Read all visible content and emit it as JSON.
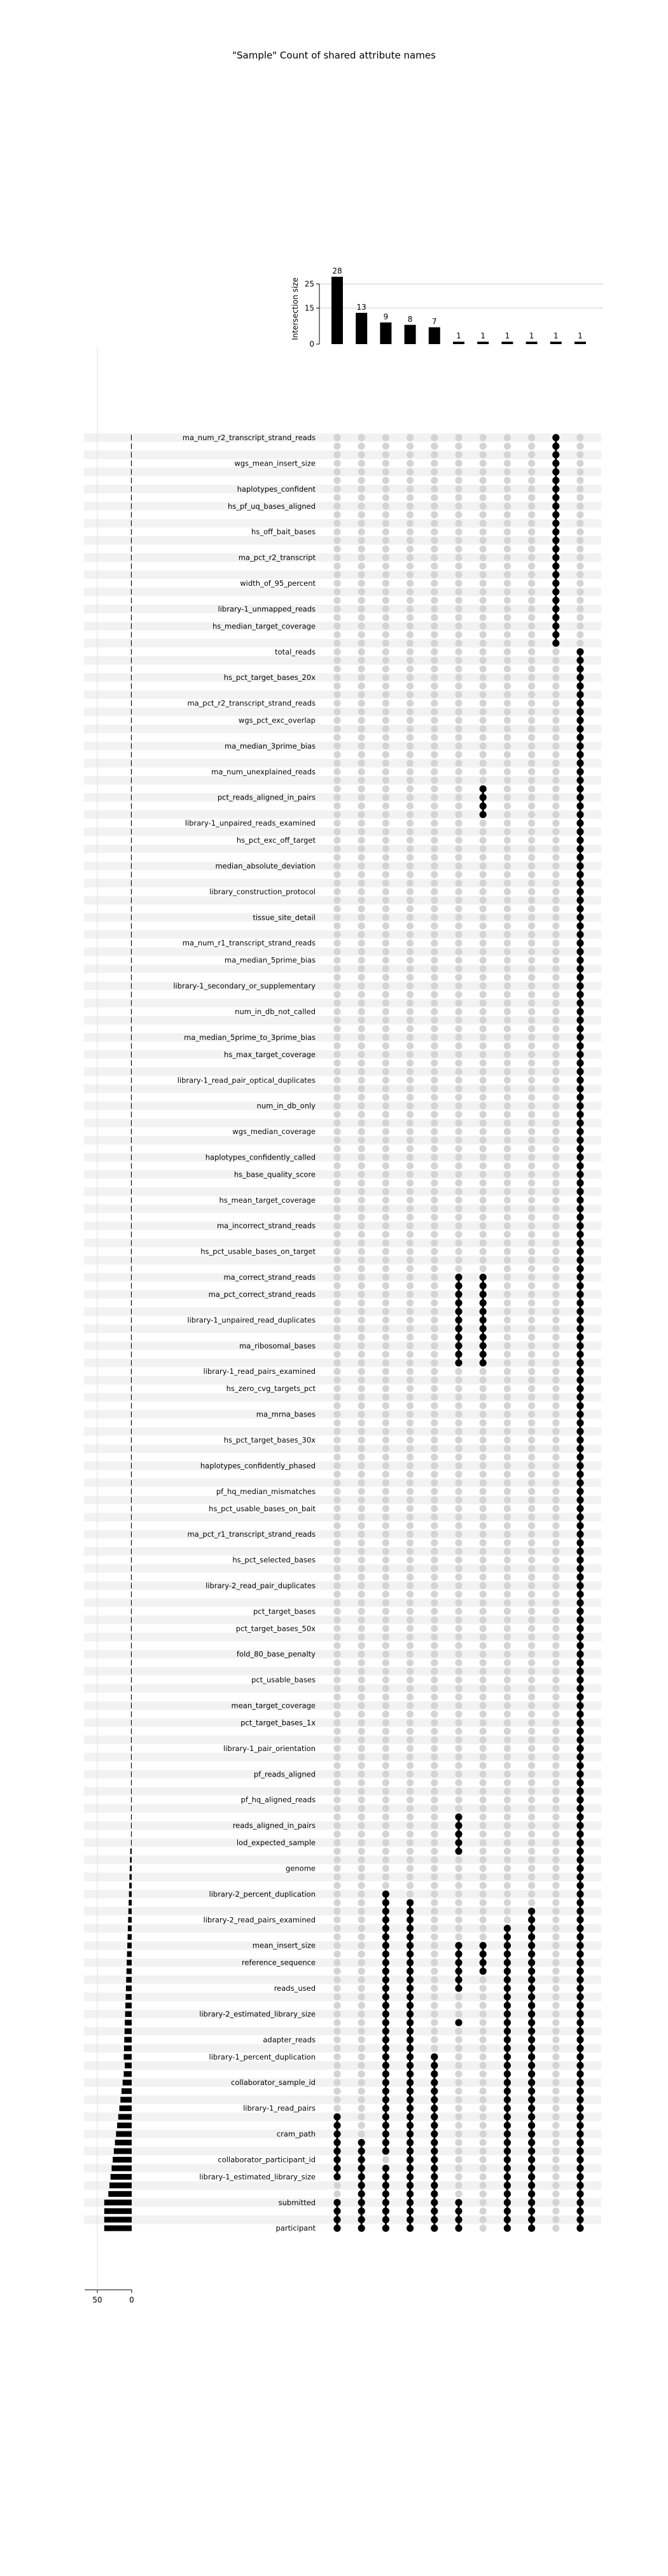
{
  "chart_data": {
    "type": "bar",
    "title": "\"Sample\" Count of shared attribute names",
    "intersection_axis_label": "Intersection size",
    "intersection_ticks": [
      0,
      15,
      25
    ],
    "intersection_sizes": [
      28,
      13,
      9,
      8,
      7,
      1,
      1,
      1,
      1,
      1,
      1
    ],
    "set_size_ticks": [
      50,
      0
    ],
    "set_size_max": 60,
    "grid": true,
    "visible_row_labels": [
      "ma_num_r2_transcript_strand_reads",
      "wgs_mean_insert_size",
      "haplotypes_confident",
      "hs_pf_uq_bases_aligned",
      "hs_off_bait_bases",
      "ma_pct_r2_transcript",
      "width_of_95_percent",
      "library-1_unmapped_reads",
      "hs_median_target_coverage",
      "total_reads",
      "hs_pct_target_bases_20x",
      "ma_pct_r2_transcript_strand_reads",
      "wgs_pct_exc_overlap",
      "ma_median_3prime_bias",
      "ma_num_unexplained_reads",
      "pct_reads_aligned_in_pairs",
      "library-1_unpaired_reads_examined",
      "hs_pct_exc_off_target",
      "median_absolute_deviation",
      "library_construction_protocol",
      "tissue_site_detail",
      "ma_num_r1_transcript_strand_reads",
      "ma_median_5prime_bias",
      "library-1_secondary_or_supplementary",
      "num_in_db_not_called",
      "ma_median_5prime_to_3prime_bias",
      "hs_max_target_coverage",
      "library-1_read_pair_optical_duplicates",
      "num_in_db_only",
      "wgs_median_coverage",
      "haplotypes_confidently_called",
      "hs_base_quality_score",
      "hs_mean_target_coverage",
      "ma_incorrect_strand_reads",
      "hs_pct_usable_bases_on_target",
      "ma_correct_strand_reads",
      "ma_pct_correct_strand_reads",
      "library-1_unpaired_read_duplicates",
      "ma_ribosomal_bases",
      "library-1_read_pairs_examined",
      "hs_zero_cvg_targets_pct",
      "ma_mrna_bases",
      "hs_pct_target_bases_30x",
      "haplotypes_confidently_phased",
      "pf_hq_median_mismatches",
      "hs_pct_usable_bases_on_bait",
      "ma_pct_r1_transcript_strand_reads",
      "hs_pct_selected_bases",
      "library-2_read_pair_duplicates",
      "pct_target_bases",
      "pct_target_bases_50x",
      "fold_80_base_penalty",
      "pct_usable_bases",
      "mean_target_coverage",
      "pct_target_bases_1x",
      "library-1_pair_orientation",
      "pf_reads_aligned",
      "pf_hq_aligned_reads",
      "reads_aligned_in_pairs",
      "lod_expected_sample",
      "genome",
      "library-2_percent_duplication",
      "library-2_read_pairs_examined",
      "mean_insert_size",
      "reference_sequence",
      "reads_used",
      "library-2_estimated_library_size",
      "adapter_reads",
      "library-1_percent_duplication",
      "collaborator_sample_id",
      "library-1_read_pairs",
      "cram_path",
      "collaborator_participant_id",
      "library-1_estimated_library_size",
      "submitted",
      "participant"
    ]
  }
}
